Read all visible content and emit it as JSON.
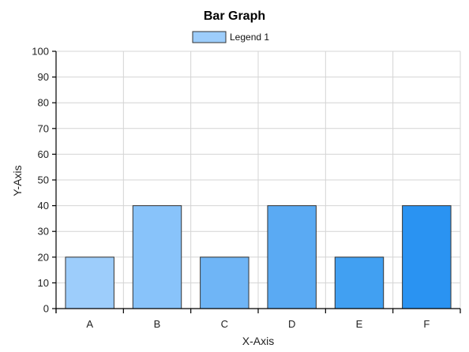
{
  "chart_data": {
    "type": "bar",
    "title": "Bar Graph",
    "xlabel": "X-Axis",
    "ylabel": "Y-Axis",
    "categories": [
      "A",
      "B",
      "C",
      "D",
      "E",
      "F"
    ],
    "series": [
      {
        "name": "Legend 1",
        "values": [
          20,
          40,
          20,
          40,
          20,
          40
        ]
      }
    ],
    "ylim": [
      0,
      100
    ],
    "yticks": [
      0,
      10,
      20,
      30,
      40,
      50,
      60,
      70,
      80,
      90,
      100
    ],
    "grid": true,
    "legend_position": "top-center",
    "legend_color": "#9dcdfb",
    "bar_colors": [
      "#9dcdfb",
      "#88c3fa",
      "#6fb5f6",
      "#5aaaf3",
      "#41a0f2",
      "#2a93f2"
    ]
  }
}
